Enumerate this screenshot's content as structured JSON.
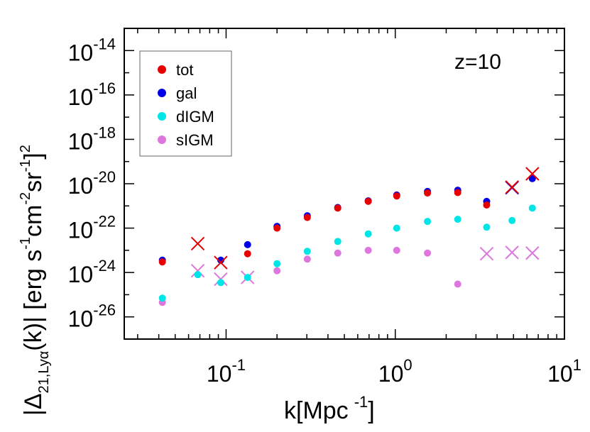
{
  "chart_data": {
    "type": "scatter",
    "xscale": "log",
    "yscale": "log",
    "xlim": [
      0.025,
      10
    ],
    "ylim": [
      1e-27,
      1e-13
    ],
    "xlabel": {
      "main": "k",
      "unit": "[Mpc",
      "exp": "-1",
      "close": "]"
    },
    "ylabel": "|Δ21,Lyα(k)| [erg s^-1 cm^-2 sr^-1]^2",
    "ylabel_parts": {
      "open": "|Δ",
      "sub": "21,Lyα",
      "mid": "(k)| [erg s",
      "e1": "-1",
      "cm": "cm",
      "e2": "-2",
      "sr": "sr",
      "e3": "-1",
      "close": "]",
      "e4": "2"
    },
    "xticks": [
      {
        "base": "10",
        "exp": "-1",
        "value": 0.1
      },
      {
        "base": "10",
        "exp": "0",
        "value": 1
      },
      {
        "base": "10",
        "exp": "1",
        "value": 10
      }
    ],
    "yticks": [
      {
        "base": "10",
        "exp": "-14",
        "value": 1e-14
      },
      {
        "base": "10",
        "exp": "-16",
        "value": 1e-16
      },
      {
        "base": "10",
        "exp": "-18",
        "value": 1e-18
      },
      {
        "base": "10",
        "exp": "-20",
        "value": 1e-20
      },
      {
        "base": "10",
        "exp": "-22",
        "value": 1e-22
      },
      {
        "base": "10",
        "exp": "-24",
        "value": 1e-24
      },
      {
        "base": "10",
        "exp": "-26",
        "value": 1e-26
      }
    ],
    "annotation": "z=10",
    "legend_position": "top-left",
    "series": [
      {
        "name": "tot",
        "color": "#e60000",
        "draw_order": 4,
        "points": [
          {
            "x": 0.042,
            "y": 3e-24,
            "marker": "dot"
          },
          {
            "x": 0.068,
            "y": 2e-23,
            "marker": "cross"
          },
          {
            "x": 0.093,
            "y": 2.8e-24,
            "marker": "cross"
          },
          {
            "x": 0.134,
            "y": 7e-24,
            "marker": "dot"
          },
          {
            "x": 0.2,
            "y": 1e-22,
            "marker": "dot"
          },
          {
            "x": 0.302,
            "y": 3e-22,
            "marker": "dot"
          },
          {
            "x": 0.457,
            "y": 8e-22,
            "marker": "dot"
          },
          {
            "x": 0.692,
            "y": 1.6e-21,
            "marker": "dot"
          },
          {
            "x": 1.02,
            "y": 2.8e-21,
            "marker": "dot"
          },
          {
            "x": 1.55,
            "y": 3.8e-21,
            "marker": "dot"
          },
          {
            "x": 2.34,
            "y": 4e-21,
            "marker": "dot"
          },
          {
            "x": 3.47,
            "y": 1.1e-21,
            "marker": "dot"
          },
          {
            "x": 4.9,
            "y": 7e-21,
            "marker": "cross"
          },
          {
            "x": 6.46,
            "y": 2.8e-20,
            "marker": "cross"
          }
        ]
      },
      {
        "name": "gal",
        "color": "#0000e6",
        "draw_order": 3,
        "points": [
          {
            "x": 0.042,
            "y": 3.6e-24,
            "marker": "dot"
          },
          {
            "x": 0.093,
            "y": 3.6e-24,
            "marker": "dot"
          },
          {
            "x": 0.134,
            "y": 1.8e-23,
            "marker": "dot"
          },
          {
            "x": 0.2,
            "y": 1.2e-22,
            "marker": "dot"
          },
          {
            "x": 0.302,
            "y": 3.6e-22,
            "marker": "dot"
          },
          {
            "x": 0.457,
            "y": 8.5e-22,
            "marker": "dot"
          },
          {
            "x": 0.692,
            "y": 1.7e-21,
            "marker": "dot"
          },
          {
            "x": 1.02,
            "y": 3.1e-21,
            "marker": "dot"
          },
          {
            "x": 1.55,
            "y": 4.5e-21,
            "marker": "dot"
          },
          {
            "x": 2.34,
            "y": 5.1e-21,
            "marker": "dot"
          },
          {
            "x": 3.47,
            "y": 1.6e-21,
            "marker": "dot"
          },
          {
            "x": 4.9,
            "y": 6.6e-21,
            "marker": "cross"
          },
          {
            "x": 6.46,
            "y": 1.7e-20,
            "marker": "dot"
          }
        ]
      },
      {
        "name": "dIGM",
        "color": "#00e6e6",
        "draw_order": 2,
        "points": [
          {
            "x": 0.042,
            "y": 7e-26,
            "marker": "dot"
          },
          {
            "x": 0.068,
            "y": 8e-25,
            "marker": "dot"
          },
          {
            "x": 0.093,
            "y": 3.5e-25,
            "marker": "dot"
          },
          {
            "x": 0.134,
            "y": 6e-25,
            "marker": "dot"
          },
          {
            "x": 0.2,
            "y": 2.5e-24,
            "marker": "dot"
          },
          {
            "x": 0.302,
            "y": 9e-24,
            "marker": "dot"
          },
          {
            "x": 0.457,
            "y": 2.5e-23,
            "marker": "dot"
          },
          {
            "x": 0.692,
            "y": 5.5e-23,
            "marker": "dot"
          },
          {
            "x": 1.02,
            "y": 1e-22,
            "marker": "dot"
          },
          {
            "x": 1.55,
            "y": 2e-22,
            "marker": "dot"
          },
          {
            "x": 2.34,
            "y": 2.5e-22,
            "marker": "dot"
          },
          {
            "x": 3.47,
            "y": 1.1e-22,
            "marker": "dot"
          },
          {
            "x": 4.9,
            "y": 2.2e-22,
            "marker": "dot"
          },
          {
            "x": 6.46,
            "y": 8e-22,
            "marker": "dot"
          }
        ]
      },
      {
        "name": "sIGM",
        "color": "#dd77dd",
        "draw_order": 1,
        "points": [
          {
            "x": 0.042,
            "y": 4.5e-26,
            "marker": "dot"
          },
          {
            "x": 0.068,
            "y": 1.2e-24,
            "marker": "cross"
          },
          {
            "x": 0.093,
            "y": 5e-25,
            "marker": "cross"
          },
          {
            "x": 0.134,
            "y": 6e-25,
            "marker": "cross"
          },
          {
            "x": 0.2,
            "y": 1.2e-24,
            "marker": "dot"
          },
          {
            "x": 0.302,
            "y": 4e-24,
            "marker": "dot"
          },
          {
            "x": 0.457,
            "y": 7.5e-24,
            "marker": "dot"
          },
          {
            "x": 0.692,
            "y": 1e-23,
            "marker": "dot"
          },
          {
            "x": 1.02,
            "y": 1e-23,
            "marker": "dot"
          },
          {
            "x": 1.55,
            "y": 7.5e-24,
            "marker": "dot"
          },
          {
            "x": 2.34,
            "y": 3e-25,
            "marker": "dot"
          },
          {
            "x": 3.47,
            "y": 7e-24,
            "marker": "cross"
          },
          {
            "x": 4.9,
            "y": 8e-24,
            "marker": "cross"
          },
          {
            "x": 6.46,
            "y": 7.5e-24,
            "marker": "cross"
          }
        ]
      }
    ]
  }
}
